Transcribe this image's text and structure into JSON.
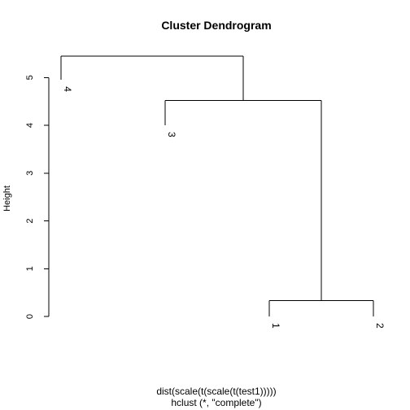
{
  "chart_data": {
    "type": "dendrogram",
    "title": "Cluster Dendrogram",
    "ylabel": "Height",
    "xlabel": "dist(scale(t(scale(t(test1)))))",
    "sub": "hclust (*, \"complete\")",
    "ylim": [
      0,
      5.5
    ],
    "yticks": [
      0,
      1,
      2,
      3,
      4,
      5
    ],
    "leaves": [
      {
        "label": "4",
        "height": 4.95
      },
      {
        "label": "3",
        "height": 4.0
      },
      {
        "label": "1",
        "height": 0.0
      },
      {
        "label": "2",
        "height": 0.0
      }
    ],
    "merges": [
      {
        "left": "1",
        "right": "2",
        "height": 0.33
      },
      {
        "left": "3",
        "right": "(1,2)",
        "height": 4.52
      },
      {
        "left": "4",
        "right": "(3,(1,2))",
        "height": 5.45
      }
    ]
  },
  "colors": {
    "background": "#ffffff",
    "foreground": "#000000"
  }
}
